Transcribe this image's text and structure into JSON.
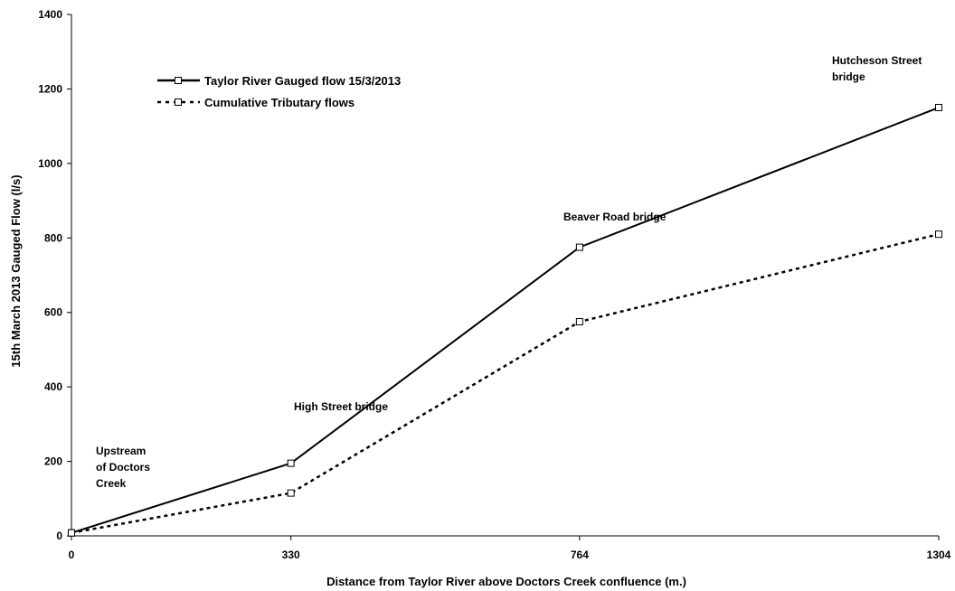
{
  "chart_data": {
    "type": "line",
    "title": "",
    "xlabel": "Distance from Taylor River above Doctors Creek confluence (m.)",
    "ylabel": "15th March 2013 Gauged Flow (l/s)",
    "x": [
      0,
      330,
      764,
      1304
    ],
    "xlim": [
      0,
      1304
    ],
    "ylim": [
      0,
      1400
    ],
    "xticks": [
      "0",
      "330",
      "764",
      "1304"
    ],
    "yticks": [
      "0",
      "200",
      "400",
      "600",
      "800",
      "1000",
      "1200",
      "1400"
    ],
    "grid": false,
    "legend": "top-left",
    "series": [
      {
        "name": "Taylor River Gauged flow 15/3/2013",
        "style": "solid",
        "color": "#000000",
        "values": [
          8,
          195,
          775,
          1150
        ]
      },
      {
        "name": "Cumulative Tributary flows",
        "style": "dotted",
        "color": "#000000",
        "values": [
          8,
          115,
          575,
          810
        ]
      }
    ],
    "annotations": [
      {
        "lines": [
          "Upstream",
          "of Doctors",
          "Creek"
        ]
      },
      {
        "lines": [
          "High Street bridge"
        ]
      },
      {
        "lines": [
          "Beaver Road bridge"
        ]
      },
      {
        "lines": [
          "Hutcheson Street",
          "bridge"
        ]
      }
    ]
  }
}
